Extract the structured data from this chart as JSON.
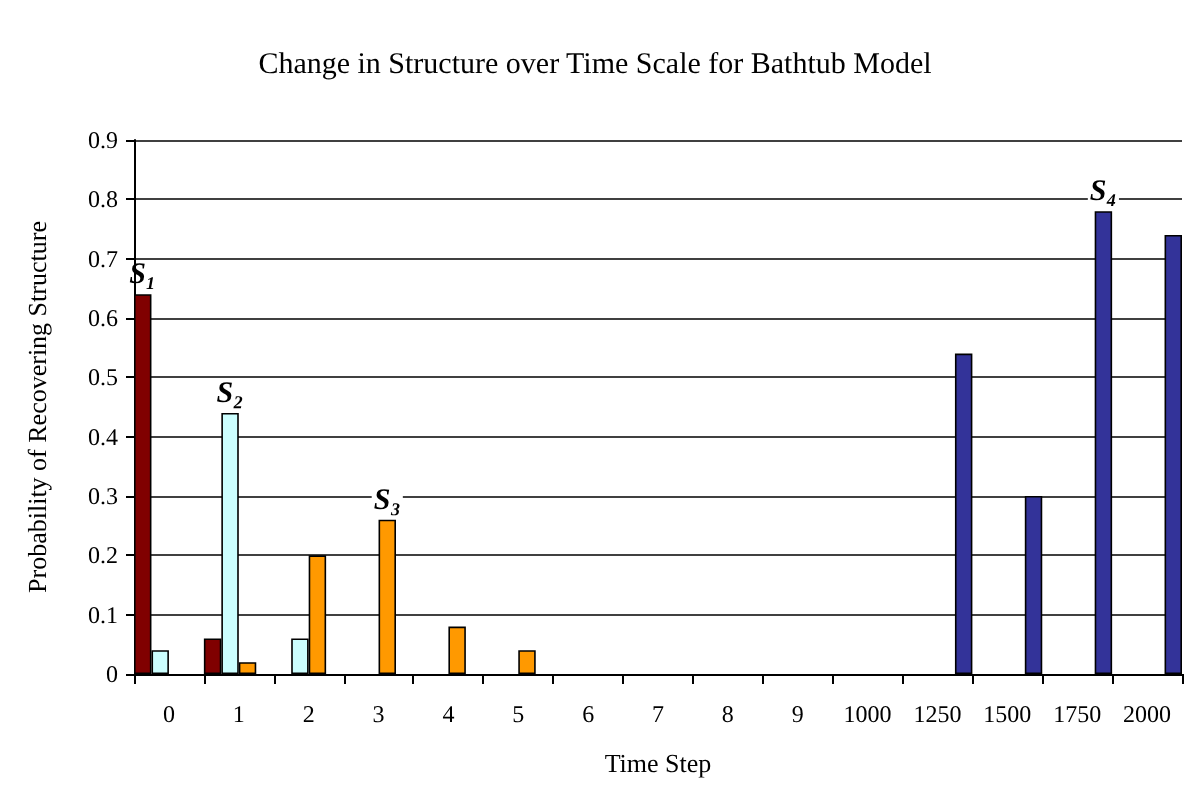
{
  "chart_data": {
    "type": "bar",
    "title": "Change in Structure over Time Scale for Bathtub Model",
    "xlabel": "Time Step",
    "ylabel": "Probability of Recovering Structure",
    "categories": [
      "0",
      "1",
      "2",
      "3",
      "4",
      "5",
      "6",
      "7",
      "8",
      "9",
      "1000",
      "1250",
      "1500",
      "1750",
      "2000"
    ],
    "series": [
      {
        "name": "S₁",
        "color": "#800000",
        "values": [
          0.64,
          0.06,
          null,
          null,
          null,
          null,
          null,
          null,
          null,
          null,
          null,
          null,
          null,
          null,
          null
        ]
      },
      {
        "name": "S₂",
        "color": "#ccffff",
        "values": [
          0.04,
          0.44,
          0.06,
          null,
          null,
          null,
          null,
          null,
          null,
          null,
          null,
          null,
          null,
          null,
          null
        ]
      },
      {
        "name": "S₃",
        "color": "#ff9900",
        "values": [
          null,
          0.02,
          0.2,
          0.26,
          0.08,
          0.04,
          null,
          null,
          null,
          null,
          null,
          null,
          null,
          null,
          null
        ]
      },
      {
        "name": "S₄",
        "color": "#333399",
        "values": [
          null,
          null,
          null,
          null,
          null,
          null,
          null,
          null,
          null,
          null,
          null,
          0.54,
          0.3,
          0.78,
          0.74
        ]
      }
    ],
    "ylim": [
      0,
      0.9
    ],
    "yticks": [
      0,
      0.1,
      0.2,
      0.3,
      0.4,
      0.5,
      0.6,
      0.7,
      0.8,
      0.9
    ],
    "grid": "y"
  }
}
